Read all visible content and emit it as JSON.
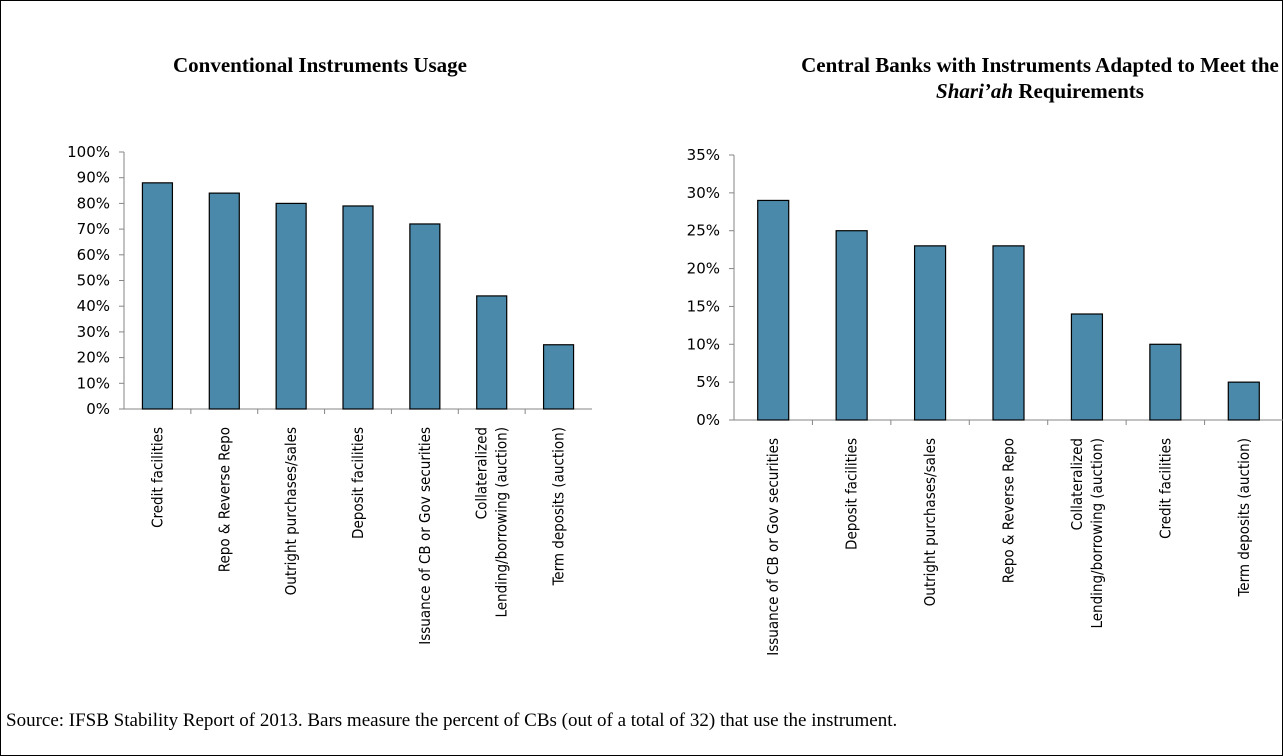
{
  "source_note": "Source: IFSB Stability Report of 2013. Bars measure the percent of CBs (out of a total of 32) that use the instrument.",
  "colors": {
    "bar": "#4A89AA",
    "bar_stroke": "#000000",
    "axis": "#868686"
  },
  "chart_data": [
    {
      "type": "bar",
      "title": "Conventional Instruments Usage",
      "categories": [
        "Credit facilities",
        "Repo & Reverse Repo",
        "Outright purchases/sales",
        "Deposit facilities",
        "Issuance of CB or Gov securities",
        "Collateralized Lending/borrowing (auction)",
        "Term deposits (auction)"
      ],
      "values": [
        0.88,
        0.84,
        0.8,
        0.79,
        0.72,
        0.44,
        0.25
      ],
      "yticks": [
        "0%",
        "10%",
        "20%",
        "30%",
        "40%",
        "50%",
        "60%",
        "70%",
        "80%",
        "90%",
        "100%"
      ],
      "ylim": [
        0,
        1.0
      ],
      "grid": false,
      "legend": "none"
    },
    {
      "type": "bar",
      "title": "Central Banks with Instruments Adapted to Meet the Shari'ah Requirements",
      "title_line1": "Central Banks with Instruments Adapted to Meet the",
      "title_line2_italic": "Shari’ah",
      "title_line2_rest": " Requirements",
      "categories": [
        "Issuance of CB or Gov securities",
        "Deposit facilities",
        "Outright purchases/sales",
        "Repo & Reverse Repo",
        "Collateralized Lending/borrowing (auction)",
        "Credit facilities",
        "Term deposits (auction)"
      ],
      "values": [
        0.29,
        0.25,
        0.23,
        0.23,
        0.14,
        0.1,
        0.05
      ],
      "yticks": [
        "0%",
        "5%",
        "10%",
        "15%",
        "20%",
        "25%",
        "30%",
        "35%"
      ],
      "ylim": [
        0,
        0.35
      ],
      "grid": false,
      "legend": "none"
    }
  ]
}
